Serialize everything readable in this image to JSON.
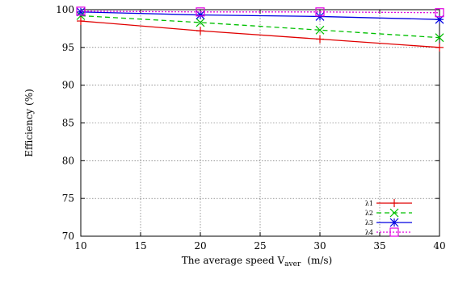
{
  "chart_data": {
    "type": "line",
    "xlabel_main": "The average speed V",
    "xlabel_sub": "aver",
    "xlabel_unit": "(m/s)",
    "ylabel": "Efficiency (%)",
    "xlim": [
      10,
      40
    ],
    "ylim": [
      70,
      100
    ],
    "xticks": [
      10,
      15,
      20,
      25,
      30,
      35,
      40
    ],
    "yticks": [
      70,
      75,
      80,
      85,
      90,
      95,
      100
    ],
    "grid": true,
    "legend_position": "bottom-right",
    "x": [
      10,
      20,
      30,
      40
    ],
    "series": [
      {
        "name": "λ1",
        "values": [
          98.5,
          97.2,
          96.1,
          95.0
        ],
        "color": "#e00000",
        "dash": "solid",
        "marker": "plus"
      },
      {
        "name": "λ2",
        "values": [
          99.2,
          98.3,
          97.3,
          96.3
        ],
        "color": "#00c000",
        "dash": "dashed",
        "marker": "x"
      },
      {
        "name": "λ3",
        "values": [
          99.7,
          99.3,
          99.1,
          98.7
        ],
        "color": "#0000e0",
        "dash": "solid",
        "marker": "star"
      },
      {
        "name": "λ4",
        "values": [
          99.8,
          99.7,
          99.7,
          99.6
        ],
        "color": "#e000e0",
        "dash": "dotted",
        "marker": "square"
      }
    ]
  }
}
